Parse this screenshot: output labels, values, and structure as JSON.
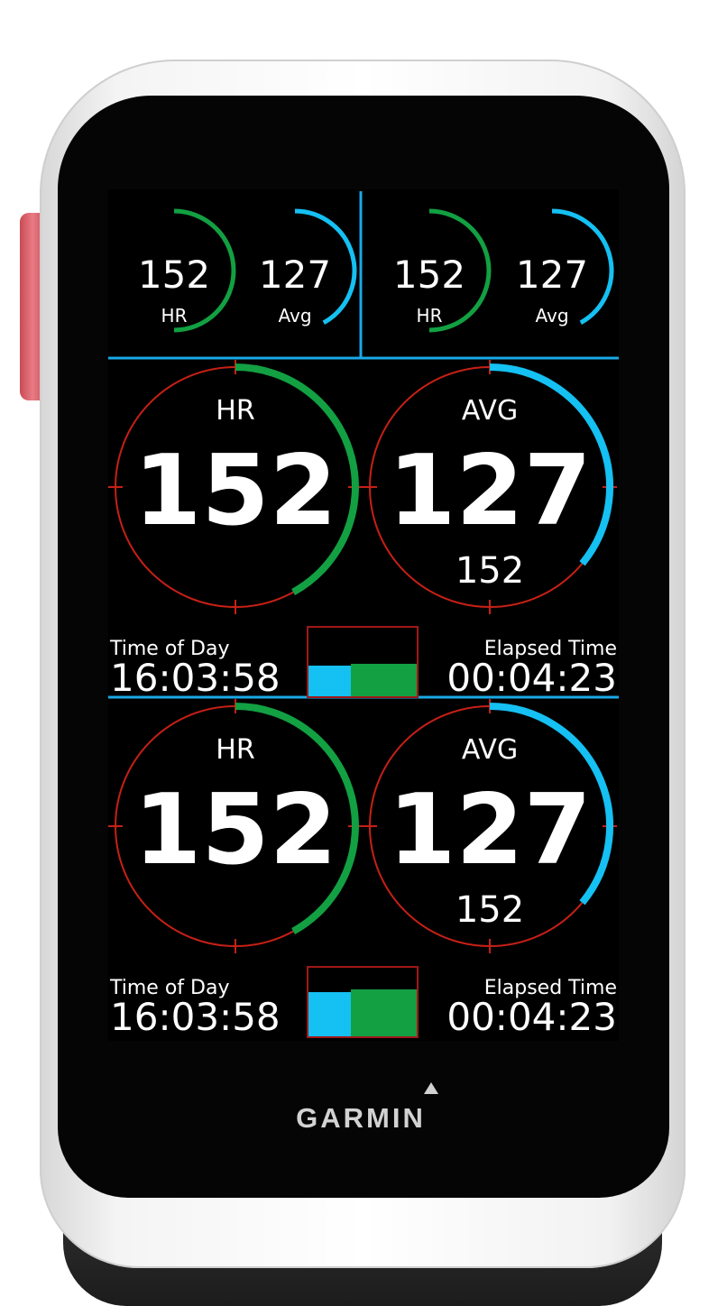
{
  "colors": {
    "hr_green": "#12a042",
    "avg_blue": "#15c0f2",
    "dial_red": "#c62016",
    "divider_blue": "#19a9e6",
    "screen": "#000000"
  },
  "brand": {
    "logo_text": "GARMIN"
  },
  "top_row": {
    "left": {
      "hr": {
        "value": "152",
        "label": "HR",
        "arc_fraction": 0.5
      },
      "avg": {
        "value": "127",
        "label": "Avg",
        "arc_fraction": 0.42
      }
    },
    "right": {
      "hr": {
        "value": "152",
        "label": "HR",
        "arc_fraction": 0.5
      },
      "avg": {
        "value": "127",
        "label": "Avg",
        "arc_fraction": 0.42
      }
    }
  },
  "panels": [
    {
      "hr_dial": {
        "label": "HR",
        "value": "152",
        "arc_fraction": 0.42
      },
      "avg_dial": {
        "label": "AVG",
        "value": "127",
        "sub_value": "152",
        "arc_fraction": 0.36
      },
      "time_of_day": {
        "label": "Time of Day",
        "value": "16:03:58"
      },
      "elapsed_time": {
        "label": "Elapsed Time",
        "value": "00:04:23"
      },
      "zone_chart": {
        "blue_fraction": 0.39,
        "blue_level": 0.45,
        "green_level": 0.48
      }
    },
    {
      "hr_dial": {
        "label": "HR",
        "value": "152",
        "arc_fraction": 0.42
      },
      "avg_dial": {
        "label": "AVG",
        "value": "127",
        "sub_value": "152",
        "arc_fraction": 0.36
      },
      "time_of_day": {
        "label": "Time of Day",
        "value": "16:03:58"
      },
      "elapsed_time": {
        "label": "Elapsed Time",
        "value": "00:04:23"
      },
      "zone_chart": {
        "blue_fraction": 0.39,
        "blue_level": 0.65,
        "green_level": 0.68
      }
    }
  ]
}
